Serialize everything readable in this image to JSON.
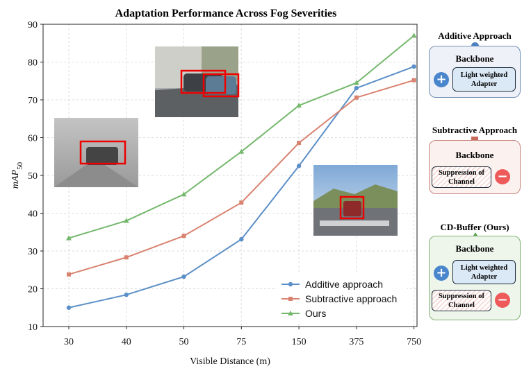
{
  "chart_data": {
    "type": "line",
    "title": "Adaptation Performance Across Fog Severities",
    "xlabel": "Visible Distance (m)",
    "ylabel": "mAP50",
    "categories": [
      "30",
      "40",
      "50",
      "75",
      "150",
      "375",
      "750"
    ],
    "ylim": [
      10,
      90
    ],
    "yticks": [
      10,
      20,
      30,
      40,
      50,
      60,
      70,
      80,
      90
    ],
    "grid": true,
    "legend_position": "bottom-right",
    "series": [
      {
        "name": "Additive approach",
        "marker": "circle",
        "color": "#5b8fc7",
        "values": [
          15.0,
          18.4,
          23.2,
          33.1,
          52.5,
          73.1,
          78.8
        ]
      },
      {
        "name": "Subtractive approach",
        "marker": "square",
        "color": "#d9826f",
        "values": [
          23.8,
          28.3,
          34.0,
          42.8,
          58.6,
          70.6,
          75.2
        ]
      },
      {
        "name": "Ours",
        "marker": "triangle",
        "color": "#74b86c",
        "values": [
          33.4,
          38.0,
          45.0,
          56.3,
          68.5,
          74.5,
          87.0
        ]
      }
    ]
  },
  "panels": {
    "additive": {
      "title": "Additive Approach",
      "title_color": "#4a7fc1",
      "backbone": "Backbone",
      "adapter": "Light weighted Adapter"
    },
    "subtractive": {
      "title": "Subtractive Approach",
      "title_color": "#b85548",
      "backbone": "Backbone",
      "suppression": "Suppression of Channel"
    },
    "cdbuffer": {
      "title": "CD-Buffer (Ours)",
      "title_color": "#5fa04e",
      "backbone": "Backbone",
      "adapter": "Light weighted Adapter",
      "suppression": "Suppression of Channel"
    }
  },
  "icons": {
    "plus": "+",
    "minus": "−"
  }
}
